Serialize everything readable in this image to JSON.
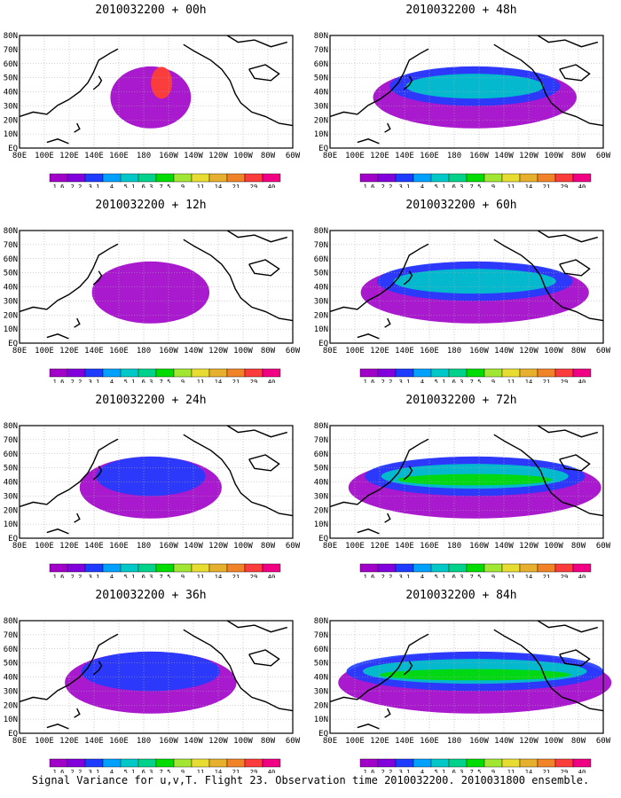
{
  "figure": {
    "footer": "Signal Variance for u,v,T. Flight 23. Observation time 2010032200. 2010031800 ensemble."
  },
  "axes": {
    "lon_labels": [
      "80E",
      "100E",
      "120E",
      "140E",
      "160E",
      "180",
      "160W",
      "140W",
      "120W",
      "100W",
      "80W",
      "60W"
    ],
    "lat_labels": [
      "80N",
      "70N",
      "60N",
      "50N",
      "40N",
      "30N",
      "20N",
      "10N",
      "EQ"
    ]
  },
  "colorbar": {
    "labels": [
      "1.6",
      "2.2",
      "3.1",
      "4",
      "5.1",
      "6.3",
      "7.5",
      "9",
      "11",
      "14",
      "21",
      "29",
      "40"
    ],
    "colors": [
      "#a000c8",
      "#8200dc",
      "#1e3cff",
      "#00a0ff",
      "#00c8c8",
      "#00d28c",
      "#00dc00",
      "#a0e632",
      "#e6dc32",
      "#e6af2d",
      "#f08228",
      "#fa3c3c",
      "#f00082"
    ]
  },
  "panels": [
    {
      "title": "2010032200 + 00h",
      "fill_level": 0.05
    },
    {
      "title": "2010032200 + 48h",
      "fill_level": 0.55
    },
    {
      "title": "2010032200 + 12h",
      "fill_level": 0.2
    },
    {
      "title": "2010032200 + 60h",
      "fill_level": 0.65
    },
    {
      "title": "2010032200 + 24h",
      "fill_level": 0.3
    },
    {
      "title": "2010032200 + 72h",
      "fill_level": 0.75
    },
    {
      "title": "2010032200 + 36h",
      "fill_level": 0.42
    },
    {
      "title": "2010032200 + 84h",
      "fill_level": 0.9
    }
  ]
}
